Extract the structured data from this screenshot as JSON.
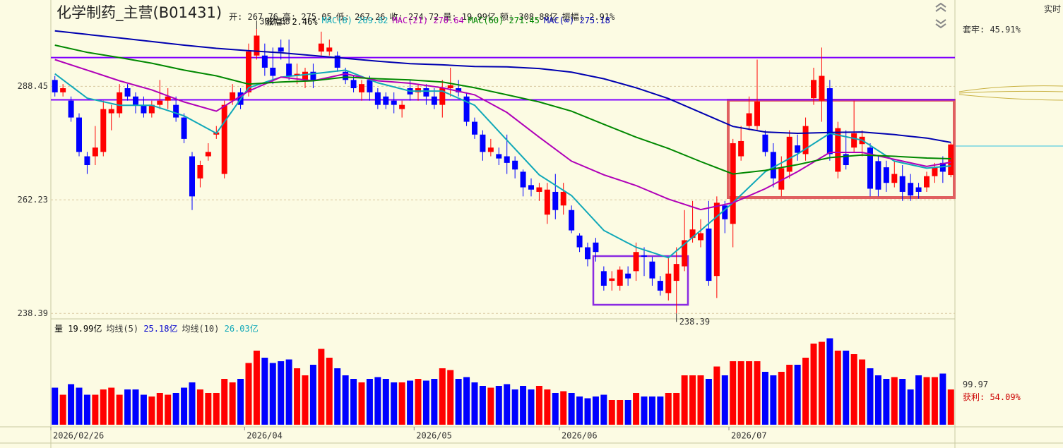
{
  "header": {
    "title": "化学制药_主营(B01431)",
    "quote": [
      "开: 267.76",
      "高: 275.05",
      "低: 267.26",
      "收: 274.72",
      "量: 19.99亿",
      "额: 308.88亿",
      "振幅: 2.91%"
    ],
    "change": "涨幅: 2.46%"
  },
  "side_panel": {
    "mode": "实时",
    "trapped": "套牢: 45.91%",
    "level": "99.97",
    "profit": "获利: 54.09%"
  },
  "chart_data": [
    {
      "type": "candlestick",
      "log_scale": true,
      "grid": true,
      "up_color": "#ff0000",
      "down_color": "#0000ff",
      "ylim": [
        237.3,
        308.3
      ],
      "yticks": [
        288.45,
        262.23,
        238.39
      ],
      "categories": [
        "2026/02/26",
        null,
        null,
        null,
        null,
        null,
        null,
        null,
        null,
        null,
        null,
        null,
        null,
        null,
        null,
        null,
        null,
        null,
        null,
        null,
        null,
        null,
        null,
        null,
        "2026/04",
        null,
        null,
        null,
        null,
        null,
        null,
        null,
        null,
        null,
        null,
        null,
        null,
        null,
        null,
        null,
        null,
        null,
        null,
        null,
        null,
        "2026/05",
        null,
        null,
        null,
        null,
        null,
        null,
        null,
        null,
        null,
        null,
        null,
        null,
        null,
        null,
        null,
        null,
        null,
        "2026/06",
        null,
        null,
        null,
        null,
        null,
        null,
        null,
        null,
        null,
        null,
        null,
        null,
        null,
        null,
        null,
        null,
        null,
        null,
        null,
        null,
        "2026/07",
        null,
        null,
        null,
        null,
        null,
        null,
        null,
        null,
        null,
        null,
        null,
        null,
        null,
        null,
        null,
        null,
        null,
        null,
        null,
        null,
        null,
        null,
        null,
        null,
        null,
        null,
        null
      ],
      "open": [
        290,
        287,
        285,
        281,
        272,
        272,
        273,
        282,
        282,
        288,
        286,
        284,
        282,
        284,
        285,
        284,
        281,
        272,
        267,
        272,
        277,
        268,
        285,
        287,
        287,
        296,
        296,
        293,
        298,
        294,
        291,
        290,
        292,
        297,
        297,
        296,
        292,
        290,
        287,
        290,
        287,
        286,
        285,
        283,
        288,
        287,
        288,
        286,
        284,
        288,
        288,
        286,
        280,
        277,
        273,
        272.5,
        272,
        271,
        268.5,
        265.5,
        264,
        259,
        264,
        261,
        260,
        254.5,
        252,
        253,
        247,
        245,
        244,
        246.5,
        247,
        250.3,
        249,
        245,
        242.5,
        245,
        248,
        254,
        253.5,
        256,
        246,
        261,
        257,
        272,
        279,
        279,
        277,
        273,
        264.5,
        268.5,
        274.5,
        272.5,
        285.6,
        285,
        288,
        268.5,
        272.5,
        274,
        274.8,
        274,
        270.9,
        269.5,
        266,
        267.5,
        266,
        265,
        265,
        267.5,
        270.5,
        267.76
      ],
      "high": [
        291,
        289,
        286,
        282,
        273,
        279,
        285,
        284,
        289,
        289,
        287,
        286,
        285,
        290,
        288,
        286,
        282,
        273,
        271,
        275,
        279,
        285,
        289,
        288,
        299,
        302.68,
        299,
        298,
        300,
        300,
        294,
        293,
        294,
        302,
        300,
        297,
        293,
        291,
        290,
        291,
        288,
        287,
        287,
        285,
        290,
        289,
        289,
        288,
        290,
        293,
        290,
        287,
        281,
        278,
        276,
        274,
        277,
        272,
        269,
        267,
        266,
        266,
        268,
        266,
        261,
        255,
        253,
        254,
        248,
        247,
        248,
        248,
        253,
        252,
        250,
        246,
        250,
        252,
        260,
        262,
        258,
        262,
        263,
        262,
        276,
        279,
        286,
        295,
        278,
        275,
        272,
        278,
        277,
        281,
        293,
        298,
        290,
        280,
        278,
        285,
        278,
        275,
        272,
        271,
        271,
        270,
        268,
        266,
        268.5,
        270.5,
        272,
        275.05
      ],
      "low": [
        286,
        286,
        280,
        272,
        268,
        270,
        272,
        278,
        281,
        285,
        282,
        281,
        281,
        283,
        283,
        280,
        275,
        260,
        265,
        271,
        276,
        267,
        284,
        283,
        286,
        295,
        291,
        289,
        295,
        290,
        289,
        288,
        288,
        296,
        296,
        292,
        289,
        287,
        285,
        285,
        283,
        283,
        282,
        281,
        285,
        285,
        284,
        283,
        281,
        286,
        286,
        279,
        276,
        271,
        272,
        270,
        268,
        267,
        263,
        263,
        262,
        257,
        258,
        259,
        255,
        251,
        248,
        249,
        243,
        243,
        243,
        244,
        245,
        246,
        244,
        242,
        241,
        238.39,
        247,
        253,
        252,
        244,
        241.5,
        255,
        252,
        271,
        278,
        278,
        272,
        265,
        263,
        267,
        271,
        271,
        284,
        280,
        271,
        267,
        269,
        273,
        272,
        263,
        263,
        264,
        265,
        262,
        262,
        262.5,
        264,
        266,
        266,
        267.26
      ],
      "close": [
        287,
        288,
        281,
        273,
        270,
        274,
        283,
        283,
        287,
        286,
        284,
        282,
        284,
        285,
        286,
        281,
        276,
        263,
        270,
        273,
        277.5,
        284,
        287,
        284,
        297,
        301,
        293,
        291,
        297,
        291,
        291.5,
        292,
        290,
        299,
        298,
        293,
        290,
        288,
        289,
        287,
        284,
        284,
        284,
        284,
        286.5,
        288,
        286,
        284,
        288,
        288.7,
        287,
        280,
        277,
        273,
        274,
        271.5,
        270.5,
        269,
        265,
        264.5,
        265,
        264.5,
        260,
        264,
        255.6,
        252,
        249.5,
        251,
        244,
        245.5,
        247.3,
        245.5,
        251,
        250,
        245.5,
        243,
        246.5,
        248.5,
        253.5,
        255.8,
        255,
        245,
        261.6,
        258,
        275,
        275.5,
        282,
        284.8,
        273,
        267,
        269.3,
        276.5,
        272.8,
        279,
        290,
        291,
        272.5,
        278.5,
        270,
        277.3,
        276.5,
        264.7,
        264.5,
        266,
        268,
        264,
        263.2,
        264,
        267.5,
        269.5,
        268.5,
        274.72
      ],
      "ma_x": [
        0,
        4,
        8,
        12,
        16,
        20,
        24,
        28,
        32,
        36,
        40,
        44,
        48,
        52,
        56,
        60,
        64,
        68,
        72,
        76,
        80,
        84,
        88,
        92,
        96,
        100,
        104,
        108,
        111
      ],
      "ma_lines": [
        {
          "name": "MAC(8)",
          "color": "#10a8b8",
          "values": [
            291.5,
            285.6,
            283.9,
            283.9,
            281.4,
            277.3,
            288.1,
            290.7,
            291.5,
            292.4,
            289.3,
            287.3,
            287.3,
            283.9,
            275.7,
            267.8,
            263.2,
            255.6,
            252.0,
            249.8,
            255.6,
            261.6,
            268.5,
            272.5,
            277.3,
            275.7,
            270.9,
            269.3,
            269.82
          ]
        },
        {
          "name": "MAC(21)",
          "color": "#b000b8",
          "values": [
            295.0,
            292.4,
            289.8,
            287.6,
            284.7,
            282.5,
            287.3,
            290.7,
            289.8,
            291.5,
            289.8,
            289.2,
            288.1,
            286.4,
            282.2,
            276.4,
            270.9,
            267.8,
            265.4,
            262.4,
            260.1,
            261.6,
            264.7,
            268.5,
            272.9,
            272.9,
            271.3,
            269.7,
            270.64
          ]
        },
        {
          "name": "MAC(60)",
          "color": "#008800",
          "values": [
            298.6,
            296.8,
            295.5,
            294.1,
            292.4,
            291.0,
            289.0,
            289.5,
            289.8,
            290.7,
            290.3,
            290.0,
            289.5,
            288.1,
            286.4,
            284.7,
            282.5,
            279.4,
            276.4,
            273.8,
            270.8,
            268.0,
            268.8,
            270.1,
            271.7,
            272.3,
            272.0,
            271.6,
            271.45
          ]
        },
        {
          "name": "MAC(∞)",
          "color": "#0000b0",
          "values": [
            302.2,
            301.3,
            300.4,
            299.5,
            298.6,
            297.8,
            297.2,
            296.7,
            296.0,
            295.3,
            294.6,
            294.0,
            293.7,
            293.3,
            293.2,
            292.8,
            291.9,
            290.3,
            288.1,
            285.5,
            282.2,
            278.9,
            277.6,
            277.3,
            277.5,
            277.6,
            277.0,
            276.2,
            275.18
          ]
        }
      ],
      "hlines": [
        295.5,
        285.2
      ],
      "hline_color": "#8000ff"
    },
    {
      "type": "bar",
      "name": "量",
      "unit": "亿",
      "ylim": [
        0,
        56
      ],
      "values": [
        21,
        17,
        23,
        21,
        17,
        17,
        20,
        21,
        17,
        20,
        20,
        17,
        16,
        18,
        17,
        18,
        21,
        24,
        20,
        18,
        18,
        26,
        24,
        26,
        35,
        42,
        38,
        35,
        36,
        37,
        32,
        28,
        34,
        43,
        38,
        32,
        28,
        26,
        24,
        26,
        27,
        26,
        24,
        24,
        25,
        26,
        25,
        26,
        32,
        31,
        26,
        27,
        24,
        22,
        21,
        22,
        23,
        20,
        22,
        20,
        22,
        20,
        18,
        19,
        18,
        16,
        15,
        16,
        17,
        14,
        14,
        14,
        18,
        16,
        16,
        16,
        18,
        18,
        28,
        28,
        28,
        26,
        33,
        28,
        36,
        36,
        36,
        36,
        30,
        28,
        30,
        34,
        34,
        38,
        46,
        47,
        49,
        42,
        42,
        40,
        37,
        32,
        28,
        26,
        27,
        26,
        20,
        28,
        27,
        27,
        29,
        19.99
      ],
      "legend": [
        {
          "name": "均线(5)",
          "value": 25.18,
          "color": "#0000cc"
        },
        {
          "name": "均线(10)",
          "value": 26.03,
          "color": "#10a8b8"
        }
      ]
    }
  ]
}
